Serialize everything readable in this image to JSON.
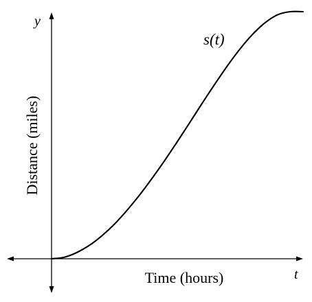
{
  "chart_data": {
    "type": "line",
    "title": "",
    "xlabel": "Time (hours)",
    "ylabel": "Distance (miles)",
    "x_axis_symbol": "t",
    "y_axis_symbol": "y",
    "grid": false,
    "ticks": false,
    "xlim": [
      0,
      1
    ],
    "ylim": [
      0,
      1
    ],
    "series": [
      {
        "name": "s(t)",
        "x": [
          0,
          0.05,
          0.1,
          0.15,
          0.2,
          0.25,
          0.3,
          0.35,
          0.4,
          0.45,
          0.5,
          0.55,
          0.6,
          0.65,
          0.7,
          0.75,
          0.8,
          0.85,
          0.9,
          0.95,
          1.0
        ],
        "y": [
          0,
          0.006,
          0.025,
          0.054,
          0.093,
          0.14,
          0.196,
          0.258,
          0.326,
          0.398,
          0.474,
          0.552,
          0.631,
          0.708,
          0.782,
          0.85,
          0.909,
          0.956,
          0.988,
          1.0,
          1.0
        ]
      }
    ]
  }
}
